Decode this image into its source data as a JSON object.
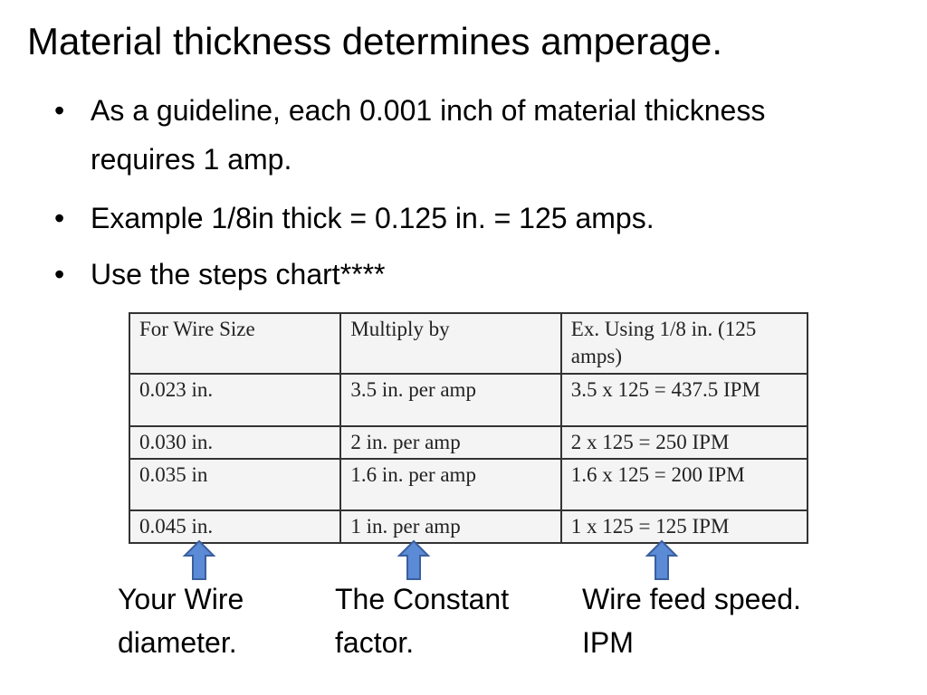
{
  "title": "Material thickness determines amperage.",
  "bullets": [
    "As a guideline, each 0.001 inch of material thickness requires 1 amp.",
    "Example 1/8in thick = 0.125 in. = 125 amps.",
    "Use the steps chart****"
  ],
  "table": {
    "headers": [
      "For Wire Size",
      "Multiply by",
      "Ex. Using 1/8 in. (125 amps)"
    ],
    "rows": [
      [
        "0.023 in.",
        "3.5 in. per amp",
        "3.5 x 125 = 437.5 IPM"
      ],
      [
        "0.030 in.",
        "2 in. per amp",
        "2 x 125 = 250 IPM"
      ],
      [
        "0.035 in",
        "1.6 in. per amp",
        "1.6 x 125  = 200 IPM"
      ],
      [
        "0.045 in.",
        "1 in. per amp",
        "1 x 125 = 125 IPM"
      ]
    ]
  },
  "labels": [
    "Your Wire diameter.",
    "The Constant factor.",
    "Wire feed speed. IPM"
  ]
}
